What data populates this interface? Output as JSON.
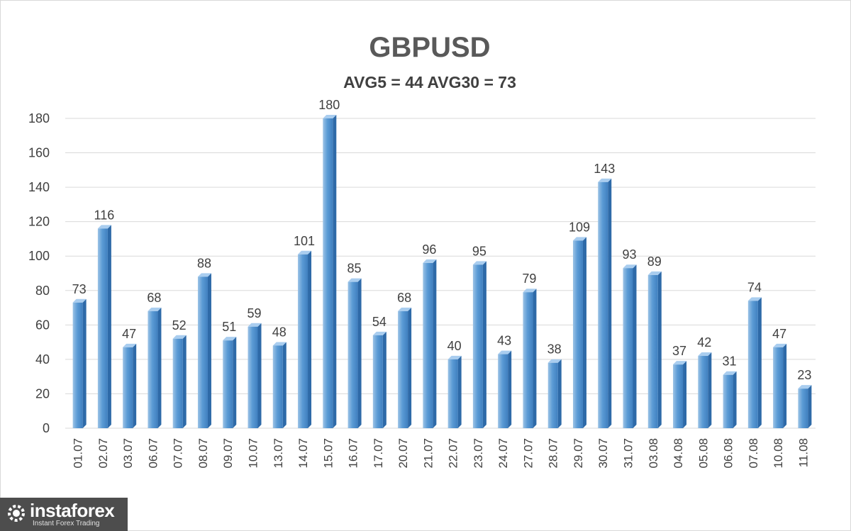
{
  "chart_data": {
    "type": "bar",
    "title": "GBPUSD",
    "subtitle": "AVG5 = 44 AVG30 = 73",
    "categories": [
      "01.07",
      "02.07",
      "03.07",
      "06.07",
      "07.07",
      "08.07",
      "09.07",
      "10.07",
      "13.07",
      "14.07",
      "15.07",
      "16.07",
      "17.07",
      "20.07",
      "21.07",
      "22.07",
      "23.07",
      "24.07",
      "27.07",
      "28.07",
      "29.07",
      "30.07",
      "31.07",
      "03.08",
      "04.08",
      "05.08",
      "06.08",
      "07.08",
      "10.08",
      "11.08"
    ],
    "values": [
      73,
      116,
      47,
      68,
      52,
      88,
      51,
      59,
      48,
      101,
      180,
      85,
      54,
      68,
      96,
      40,
      95,
      43,
      79,
      38,
      109,
      143,
      93,
      89,
      37,
      42,
      31,
      74,
      47,
      23
    ],
    "ylim": [
      0,
      180
    ],
    "yticks": [
      0,
      20,
      40,
      60,
      80,
      100,
      120,
      140,
      160,
      180
    ],
    "grid": true,
    "bar_color": "#5b9bd5"
  },
  "watermark": {
    "name": "instaforex",
    "tagline": "Instant Forex Trading"
  }
}
